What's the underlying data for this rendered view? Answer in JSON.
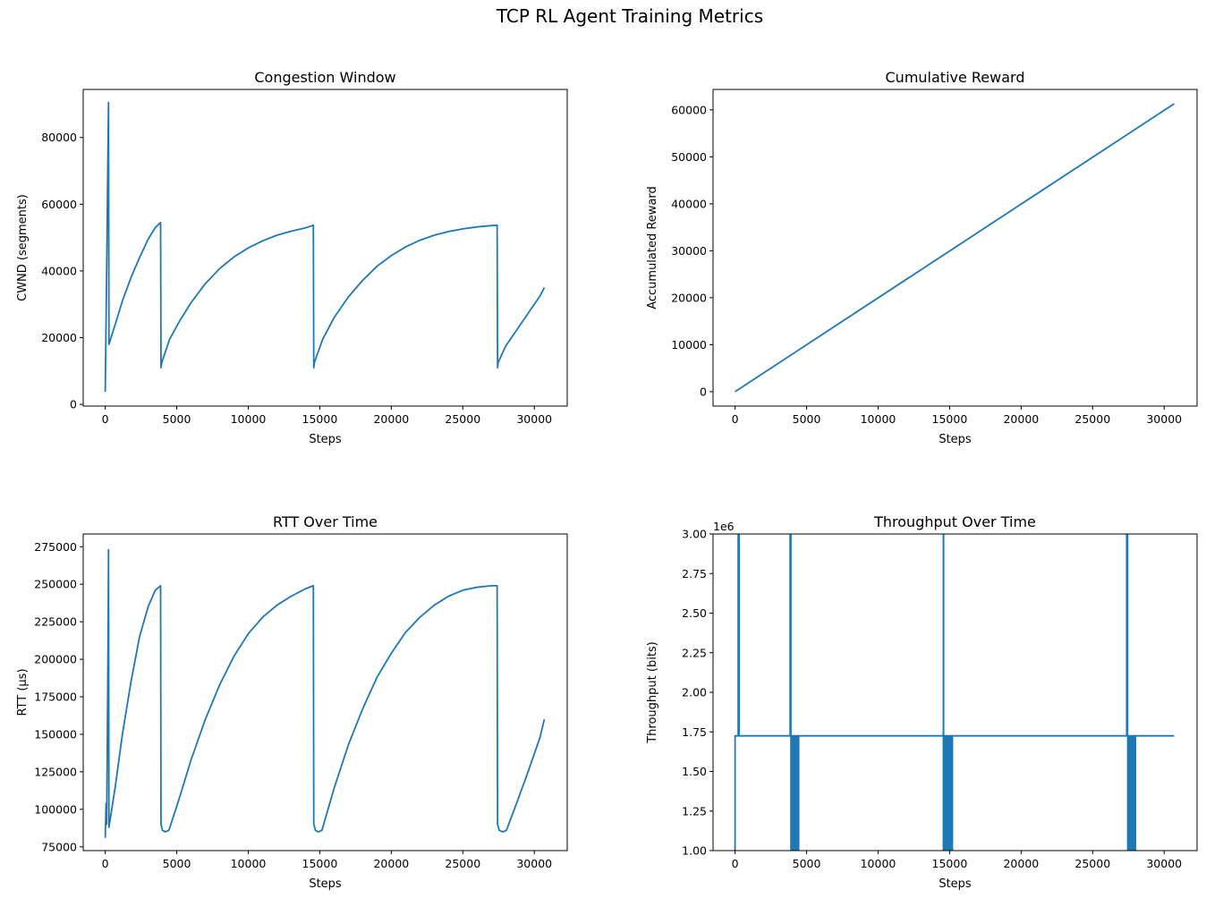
{
  "figure": {
    "title": "TCP RL Agent Training Metrics",
    "line_color": "#1f77b4"
  },
  "chart_data": [
    {
      "type": "line",
      "title": "Congestion Window",
      "xlabel": "Steps",
      "ylabel": "CWND (segments)",
      "xlim": [
        -1540,
        32300
      ],
      "ylim": [
        -500,
        94400
      ],
      "xticks": [
        0,
        5000,
        10000,
        15000,
        20000,
        25000,
        30000
      ],
      "xtick_labels": [
        "0",
        "5000",
        "10000",
        "15000",
        "20000",
        "25000",
        "30000"
      ],
      "yticks": [
        0,
        20000,
        40000,
        60000,
        80000
      ],
      "ytick_labels": [
        "0",
        "20000",
        "40000",
        "60000",
        "80000"
      ],
      "series": [
        {
          "x": [
            0,
            100,
            200,
            230,
            260,
            700,
            1200,
            1800,
            2400,
            3000,
            3500,
            3870,
            3900,
            3950,
            4500,
            5200,
            6000,
            7000,
            8000,
            9000,
            10000,
            11000,
            12000,
            13000,
            14000,
            14550,
            14580,
            14620,
            15200,
            16000,
            17000,
            18000,
            19000,
            20000,
            21000,
            22000,
            23000,
            24000,
            25000,
            26000,
            27000,
            27400,
            27430,
            27470,
            28000,
            28800,
            29600,
            30400,
            30700
          ],
          "y": [
            3800,
            40000,
            80000,
            90500,
            18000,
            24000,
            31000,
            38000,
            44000,
            49500,
            53000,
            54500,
            11000,
            12500,
            19500,
            25000,
            30500,
            36200,
            40700,
            44200,
            46900,
            49000,
            50700,
            51900,
            52900,
            53700,
            11000,
            12500,
            19500,
            26000,
            32200,
            37200,
            41400,
            44600,
            47200,
            49200,
            50700,
            51800,
            52600,
            53200,
            53600,
            53700,
            11000,
            12500,
            17500,
            22500,
            27500,
            32500,
            35000
          ]
        }
      ]
    },
    {
      "type": "line",
      "title": "Cumulative Reward",
      "xlabel": "Steps",
      "ylabel": "Accumulated Reward",
      "xlim": [
        -1540,
        32300
      ],
      "ylim": [
        -3070,
        64350
      ],
      "xticks": [
        0,
        5000,
        10000,
        15000,
        20000,
        25000,
        30000
      ],
      "xtick_labels": [
        "0",
        "5000",
        "10000",
        "15000",
        "20000",
        "25000",
        "30000"
      ],
      "yticks": [
        0,
        10000,
        20000,
        30000,
        40000,
        50000,
        60000
      ],
      "ytick_labels": [
        "0",
        "10000",
        "20000",
        "30000",
        "40000",
        "50000",
        "60000"
      ],
      "series": [
        {
          "x": [
            0,
            30700
          ],
          "y": [
            0,
            61300
          ]
        }
      ]
    },
    {
      "type": "line",
      "title": "RTT Over Time",
      "xlabel": "Steps",
      "ylabel": "RTT (µs)",
      "xlim": [
        -1540,
        32300
      ],
      "ylim": [
        72500,
        283500
      ],
      "xticks": [
        0,
        5000,
        10000,
        15000,
        20000,
        25000,
        30000
      ],
      "xtick_labels": [
        "0",
        "5000",
        "10000",
        "15000",
        "20000",
        "25000",
        "30000"
      ],
      "yticks": [
        75000,
        100000,
        125000,
        150000,
        175000,
        200000,
        225000,
        250000,
        275000
      ],
      "ytick_labels": [
        "75000",
        "100000",
        "125000",
        "150000",
        "175000",
        "200000",
        "225000",
        "250000",
        "275000"
      ],
      "series": [
        {
          "x": [
            0,
            60,
            100,
            150,
            200,
            230,
            260,
            700,
            1200,
            1800,
            2400,
            3000,
            3500,
            3870,
            3900,
            4000,
            4200,
            4450,
            5200,
            6000,
            7000,
            8000,
            9000,
            10000,
            11000,
            12000,
            13000,
            14000,
            14550,
            14580,
            14700,
            14900,
            15150,
            16000,
            17000,
            18000,
            19000,
            20000,
            21000,
            22000,
            23000,
            24000,
            25000,
            26000,
            27000,
            27400,
            27430,
            27550,
            27800,
            28050,
            28800,
            29600,
            30400,
            30700
          ],
          "y": [
            81000,
            104000,
            90000,
            150000,
            215000,
            273000,
            88000,
            115000,
            150000,
            185000,
            215000,
            235000,
            246000,
            249000,
            90000,
            86000,
            85000,
            86000,
            108000,
            133000,
            160000,
            183000,
            202000,
            217000,
            228000,
            236000,
            242000,
            247000,
            249000,
            90000,
            86000,
            85000,
            86000,
            114000,
            143000,
            167000,
            188000,
            204000,
            218000,
            228000,
            236000,
            242000,
            246000,
            248000,
            249000,
            249000,
            90000,
            86000,
            85000,
            86000,
            105000,
            126000,
            148000,
            160000
          ]
        }
      ]
    },
    {
      "type": "line",
      "title": "Throughput Over Time",
      "xlabel": "Steps",
      "ylabel": "Throughput (bits)",
      "y_offset_label": "1e6",
      "xlim": [
        -1540,
        32300
      ],
      "ylim": [
        1.0,
        3.0
      ],
      "xticks": [
        0,
        5000,
        10000,
        15000,
        20000,
        25000,
        30000
      ],
      "xtick_labels": [
        "0",
        "5000",
        "10000",
        "15000",
        "20000",
        "25000",
        "30000"
      ],
      "yticks": [
        1.0,
        1.25,
        1.5,
        1.75,
        2.0,
        2.25,
        2.5,
        2.75,
        3.0
      ],
      "ytick_labels": [
        "1.00",
        "1.25",
        "1.50",
        "1.75",
        "2.00",
        "2.25",
        "2.50",
        "2.75",
        "3.00"
      ],
      "series": [
        {
          "x": [
            0,
            0,
            0,
            40,
            40,
            220,
            220,
            280,
            280,
            3850,
            3850,
            3900,
            3900,
            27380,
            27380,
            27440,
            27440,
            30700
          ],
          "y": [
            0.9,
            1.725,
            1.725,
            1.725,
            1.725,
            1.725,
            3.1,
            3.1,
            1.725,
            1.725,
            3.1,
            3.1,
            1.725,
            1.725,
            3.1,
            3.1,
            1.725,
            1.725
          ]
        }
      ],
      "spikes_x": [
        14570
      ],
      "dense_bands": [
        {
          "x_start": 3850,
          "x_end": 4500,
          "y_low": 1.0,
          "y_high": 1.725
        },
        {
          "x_start": 14550,
          "x_end": 15250,
          "y_low": 1.0,
          "y_high": 1.725
        },
        {
          "x_start": 27400,
          "x_end": 28050,
          "y_low": 1.0,
          "y_high": 1.725
        }
      ]
    }
  ]
}
